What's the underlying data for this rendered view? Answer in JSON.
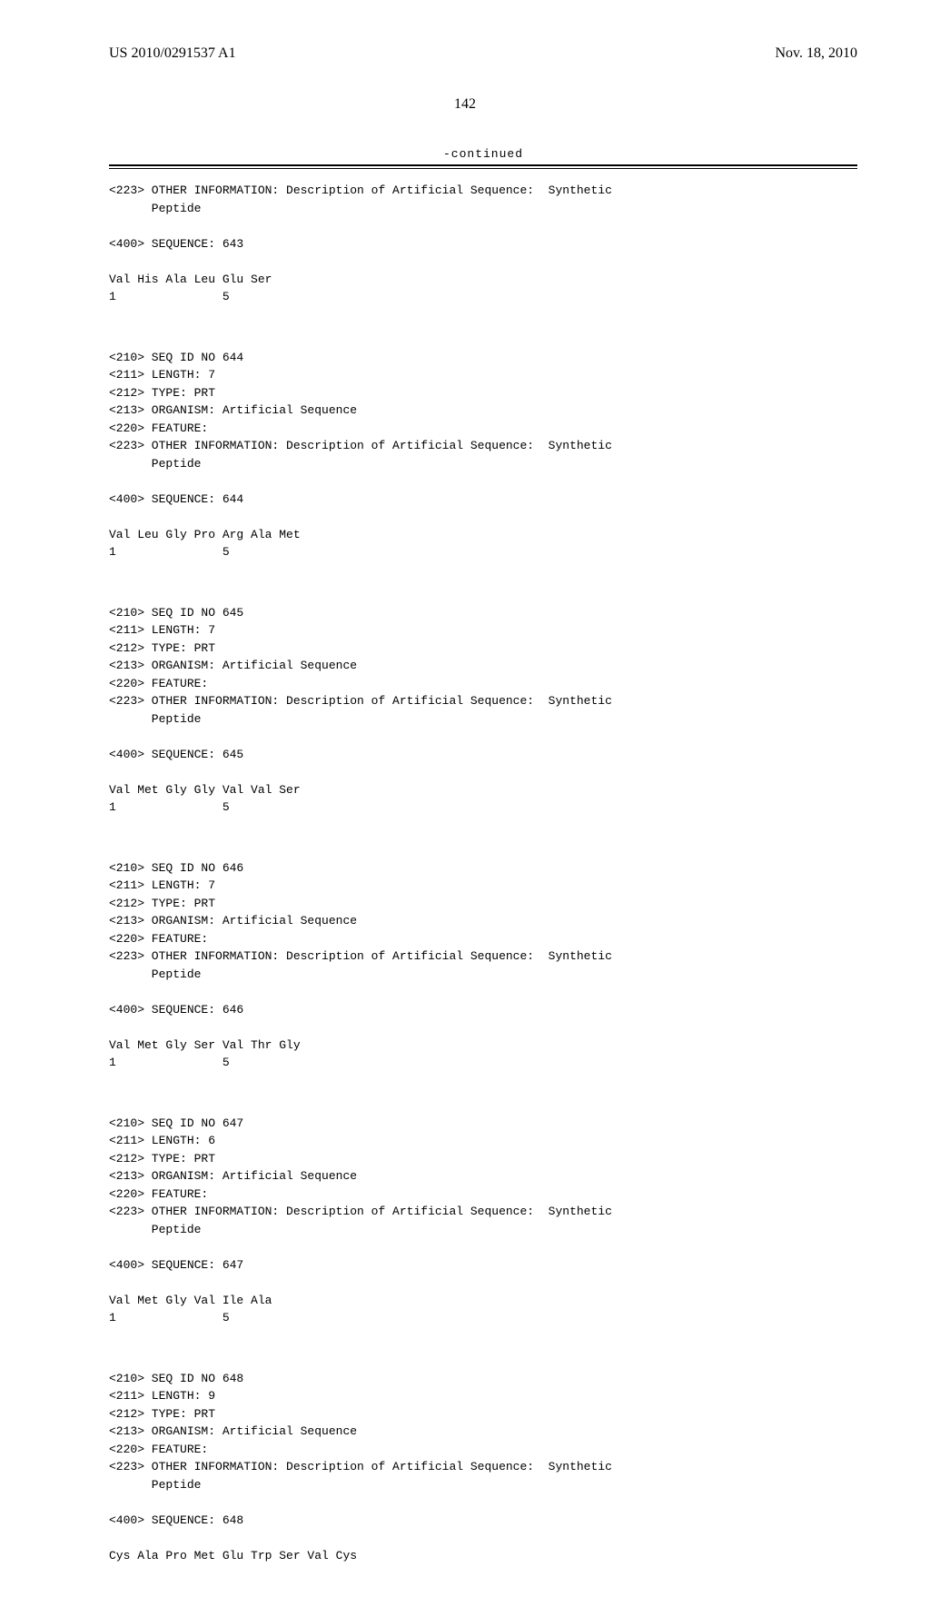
{
  "header": {
    "pub_number": "US 2010/0291537 A1",
    "date": "Nov. 18, 2010"
  },
  "page_number": "142",
  "continued_label": "-continued",
  "sequences": [
    {
      "pre_meta": [
        "<223> OTHER INFORMATION: Description of Artificial Sequence:  Synthetic",
        "      Peptide"
      ],
      "seq_line": "<400> SEQUENCE: 643",
      "residues": "Val His Ala Leu Glu Ser",
      "positions": "1               5"
    },
    {
      "meta": [
        "<210> SEQ ID NO 644",
        "<211> LENGTH: 7",
        "<212> TYPE: PRT",
        "<213> ORGANISM: Artificial Sequence",
        "<220> FEATURE:",
        "<223> OTHER INFORMATION: Description of Artificial Sequence:  Synthetic",
        "      Peptide"
      ],
      "seq_line": "<400> SEQUENCE: 644",
      "residues": "Val Leu Gly Pro Arg Ala Met",
      "positions": "1               5"
    },
    {
      "meta": [
        "<210> SEQ ID NO 645",
        "<211> LENGTH: 7",
        "<212> TYPE: PRT",
        "<213> ORGANISM: Artificial Sequence",
        "<220> FEATURE:",
        "<223> OTHER INFORMATION: Description of Artificial Sequence:  Synthetic",
        "      Peptide"
      ],
      "seq_line": "<400> SEQUENCE: 645",
      "residues": "Val Met Gly Gly Val Val Ser",
      "positions": "1               5"
    },
    {
      "meta": [
        "<210> SEQ ID NO 646",
        "<211> LENGTH: 7",
        "<212> TYPE: PRT",
        "<213> ORGANISM: Artificial Sequence",
        "<220> FEATURE:",
        "<223> OTHER INFORMATION: Description of Artificial Sequence:  Synthetic",
        "      Peptide"
      ],
      "seq_line": "<400> SEQUENCE: 646",
      "residues": "Val Met Gly Ser Val Thr Gly",
      "positions": "1               5"
    },
    {
      "meta": [
        "<210> SEQ ID NO 647",
        "<211> LENGTH: 6",
        "<212> TYPE: PRT",
        "<213> ORGANISM: Artificial Sequence",
        "<220> FEATURE:",
        "<223> OTHER INFORMATION: Description of Artificial Sequence:  Synthetic",
        "      Peptide"
      ],
      "seq_line": "<400> SEQUENCE: 647",
      "residues": "Val Met Gly Val Ile Ala",
      "positions": "1               5"
    },
    {
      "meta": [
        "<210> SEQ ID NO 648",
        "<211> LENGTH: 9",
        "<212> TYPE: PRT",
        "<213> ORGANISM: Artificial Sequence",
        "<220> FEATURE:",
        "<223> OTHER INFORMATION: Description of Artificial Sequence:  Synthetic",
        "      Peptide"
      ],
      "seq_line": "<400> SEQUENCE: 648",
      "residues": "Cys Ala Pro Met Glu Trp Ser Val Cys",
      "positions": ""
    }
  ]
}
